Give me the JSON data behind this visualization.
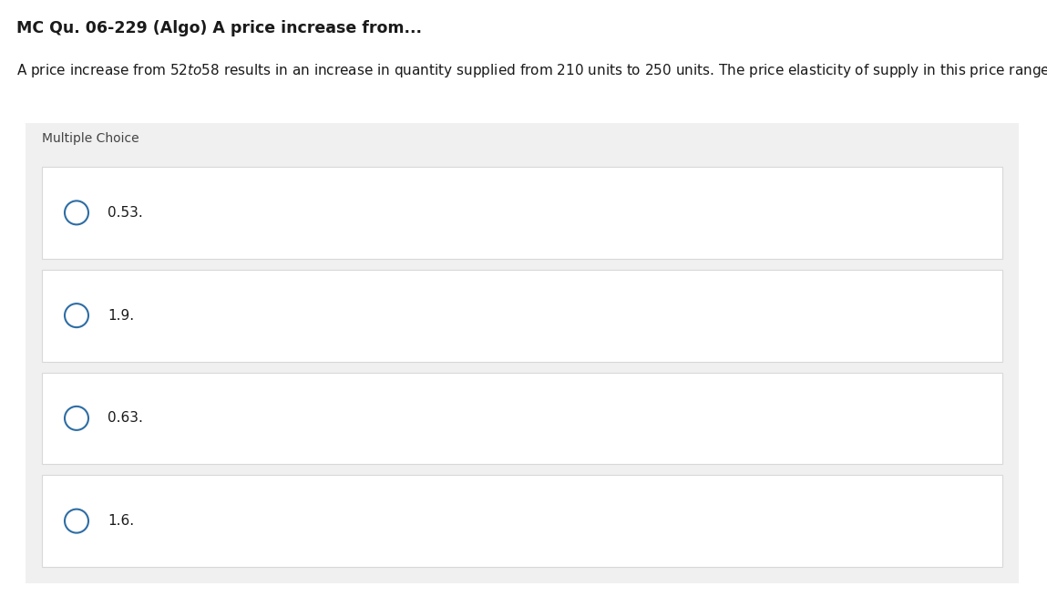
{
  "title": "MC Qu. 06-229 (Algo) A price increase from...",
  "question_text": "A price increase from $52 to $58 results in an increase in quantity supplied from 210 units to 250 units. The price elasticity of supply in this price range is",
  "section_label": "Multiple Choice",
  "choices": [
    "0.53.",
    "1.9.",
    "0.63.",
    "1.6."
  ],
  "bg_color": "#ffffff",
  "section_bg": "#f0f0f0",
  "choice_bg": "#ffffff",
  "choice_border": "#d8d8d8",
  "circle_color": "#2e6da4",
  "title_fontsize": 12.5,
  "question_fontsize": 11,
  "choice_fontsize": 11,
  "section_label_fontsize": 10
}
